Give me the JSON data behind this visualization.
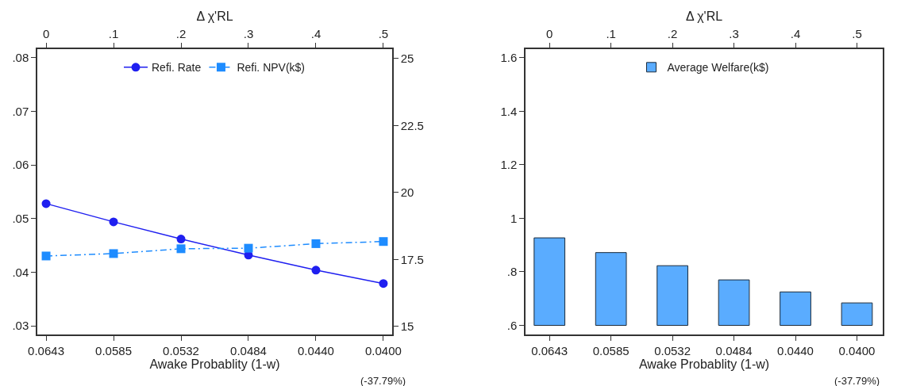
{
  "chart_data": [
    {
      "type": "line",
      "categories": [
        "0.0643",
        "0.0585",
        "0.0532",
        "0.0484",
        "0.0440",
        "0.0400"
      ],
      "xlabel": "Awake Probablity (1-w)",
      "x2label": "Δ χ'RL",
      "x2lim": [
        -0.013,
        0.513
      ],
      "x2ticks": [
        0,
        {
          "value": 0.1,
          "label": ".1"
        },
        {
          "value": 0.2,
          "label": ".2"
        },
        {
          "value": 0.3,
          "label": ".3"
        },
        {
          "value": 0.4,
          "label": ".4"
        },
        {
          "value": 0.5,
          "label": ".5"
        }
      ],
      "ylim": [
        0.0284,
        0.0816
      ],
      "yticks": [
        {
          "value": 0.03,
          "label": ".03"
        },
        {
          "value": 0.04,
          "label": ".04"
        },
        {
          "value": 0.05,
          "label": ".05"
        },
        {
          "value": 0.06,
          "label": ".06"
        },
        {
          "value": 0.07,
          "label": ".07"
        },
        {
          "value": 0.08,
          "label": ".08"
        }
      ],
      "y2lim": [
        14.7,
        25.35
      ],
      "y2ticks": [
        15,
        17.5,
        20,
        22.5,
        25
      ],
      "series": [
        {
          "name": "Refi. Rate",
          "color": "#1f1ff0",
          "marker": "circle",
          "line_style": "solid",
          "values": [
            0.0528,
            0.0494,
            0.0462,
            0.0432,
            0.0404,
            0.0379
          ]
        },
        {
          "name": "Refi. NPV(k$)",
          "color": "#1e8cff",
          "marker": "square",
          "line_style": "dashed",
          "axis": "y2",
          "values": [
            17.63,
            17.72,
            17.9,
            17.92,
            18.09,
            18.17
          ]
        }
      ],
      "legend": "top",
      "annotations": [
        "(-37.79%)"
      ]
    },
    {
      "type": "bar",
      "categories": [
        "0.0643",
        "0.0585",
        "0.0532",
        "0.0484",
        "0.0440",
        "0.0400"
      ],
      "xlabel": "Awake Probablity (1-w)",
      "x2label": "Δ χ'RL",
      "x2lim": [
        -0.039,
        0.542
      ],
      "x2ticks": [
        0,
        {
          "value": 0.1,
          "label": ".1"
        },
        {
          "value": 0.2,
          "label": ".2"
        },
        {
          "value": 0.3,
          "label": ".3"
        },
        {
          "value": 0.4,
          "label": ".4"
        },
        {
          "value": 0.5,
          "label": ".5"
        }
      ],
      "ylim": [
        0.566,
        1.632
      ],
      "yticks": [
        {
          "value": 0.6,
          "label": ".6"
        },
        {
          "value": 0.8,
          "label": ".8"
        },
        1,
        1.2,
        1.4,
        1.6
      ],
      "series": [
        {
          "name": "Average Welfare(k$)",
          "color": "#5aacff",
          "base": [
            0.6,
            0.6,
            0.6,
            0.6,
            0.6,
            0.6
          ],
          "values": [
            0.327,
            0.272,
            0.223,
            0.17,
            0.125,
            0.084
          ]
        }
      ],
      "legend": "top",
      "annotations": [
        "(-37.79%)"
      ]
    }
  ]
}
